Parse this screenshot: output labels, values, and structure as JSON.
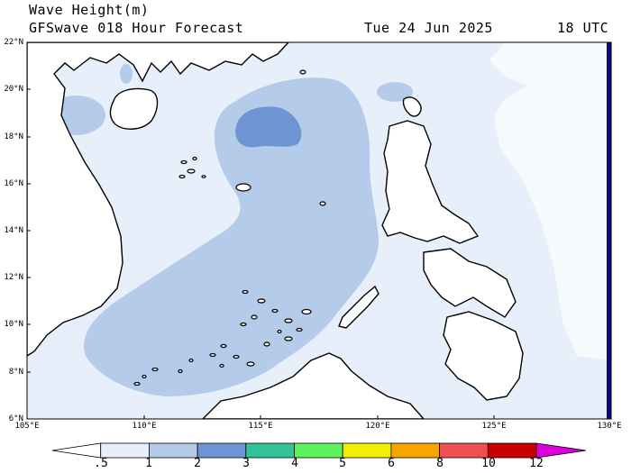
{
  "header": {
    "title": "Wave Height(m)",
    "subtitle": "GFSwave 018 Hour Forecast",
    "date": "Tue 24 Jun 2025",
    "time": "18 UTC"
  },
  "map": {
    "lat_labels": [
      "22°N",
      "20°N",
      "18°N",
      "16°N",
      "14°N",
      "12°N",
      "10°N",
      "8°N",
      "6°N"
    ],
    "lon_labels": [
      "105°E",
      "110°E",
      "115°E",
      "120°E",
      "125°E",
      "130°E"
    ],
    "colors": {
      "very_light": "#e7f0fa",
      "light": "#b4cbe9",
      "medium": "#6f94d4",
      "land": "#ffffff",
      "coast": "#000000"
    }
  },
  "colorbar": {
    "labels": [
      ".5",
      "1",
      "2",
      "3",
      "4",
      "5",
      "6",
      "8",
      "10",
      "12"
    ],
    "colors": [
      "#ffffff",
      "#e7f0fa",
      "#b4cbe9",
      "#6f94d4",
      "#33c29a",
      "#5ef25e",
      "#f0f000",
      "#f6a600",
      "#ef4f4f",
      "#c80000",
      "#dd00dd"
    ]
  }
}
